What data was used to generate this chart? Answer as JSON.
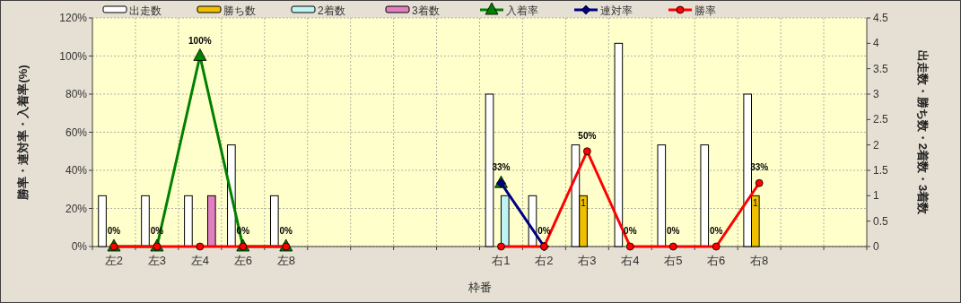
{
  "chart_data": {
    "type": "bar",
    "xlabel": "枠番",
    "ylabel": "勝率・連対率・入着率(%)",
    "y2label": "出走数・勝ち数・2着数・3着数",
    "categories": [
      "左2",
      "左3",
      "左4",
      "左6",
      "左8",
      null,
      null,
      null,
      null,
      "右1",
      "右2",
      "右3",
      "右4",
      "右5",
      "右6",
      "右8",
      null,
      null
    ],
    "series": [
      {
        "name": "出走数",
        "axis": "y2",
        "color": "#ffffff",
        "values": [
          1,
          1,
          1,
          2,
          1,
          null,
          null,
          null,
          null,
          3,
          1,
          2,
          4,
          2,
          2,
          3,
          null,
          null
        ]
      },
      {
        "name": "勝ち数",
        "axis": "y2",
        "color": "#f0c000",
        "values": [
          0,
          0,
          0,
          0,
          0,
          null,
          null,
          null,
          null,
          0,
          0,
          1,
          0,
          0,
          0,
          1,
          null,
          null
        ],
        "value_labels": [
          null,
          null,
          null,
          null,
          null,
          null,
          null,
          null,
          null,
          null,
          null,
          "1",
          null,
          null,
          null,
          "1",
          null,
          null
        ]
      },
      {
        "name": "2着数",
        "axis": "y2",
        "color": "#c0f4f4",
        "values": [
          0,
          0,
          0,
          0,
          0,
          null,
          null,
          null,
          null,
          1,
          0,
          0,
          0,
          0,
          0,
          0,
          null,
          null
        ]
      },
      {
        "name": "3着数",
        "axis": "y2",
        "color": "#e080c0",
        "values": [
          0,
          0,
          1,
          0,
          0,
          null,
          null,
          null,
          null,
          0,
          0,
          0,
          0,
          0,
          0,
          0,
          null,
          null
        ]
      },
      {
        "name": "入着率",
        "type": "line",
        "marker": "triangle",
        "color": "#008000",
        "values": [
          0,
          0,
          100,
          0,
          0,
          null,
          null,
          null,
          null,
          33.3,
          null,
          null,
          null,
          null,
          null,
          null,
          null,
          null
        ],
        "value_labels": [
          "0%",
          "0%",
          "100%",
          "0%",
          "0%",
          null,
          null,
          null,
          null,
          "33%",
          null,
          null,
          null,
          null,
          null,
          null,
          null,
          null
        ]
      },
      {
        "name": "連対率",
        "type": "line",
        "marker": "diamond",
        "color": "#000080",
        "values": [
          null,
          null,
          null,
          null,
          null,
          null,
          null,
          null,
          null,
          33.3,
          0,
          null,
          null,
          null,
          null,
          null,
          null,
          null
        ]
      },
      {
        "name": "勝率",
        "type": "line",
        "marker": "circle",
        "color": "#ff0000",
        "values": [
          0,
          0,
          0,
          0,
          0,
          null,
          null,
          null,
          null,
          0,
          0,
          50,
          0,
          0,
          0,
          33.3,
          null,
          null
        ],
        "value_labels": [
          null,
          null,
          null,
          null,
          null,
          null,
          null,
          null,
          null,
          null,
          "0%",
          "50%",
          "0%",
          "0%",
          "0%",
          "33%",
          null,
          null
        ]
      }
    ],
    "ylim": [
      0,
      120
    ],
    "yticks": [
      {
        "value": 0,
        "label": "0%"
      },
      {
        "value": 20,
        "label": "20%"
      },
      {
        "value": 40,
        "label": "40%"
      },
      {
        "value": 60,
        "label": "60%"
      },
      {
        "value": 80,
        "label": "80%"
      },
      {
        "value": 100,
        "label": "100%"
      },
      {
        "value": 120,
        "label": "120%"
      }
    ],
    "y2lim": [
      0,
      4.5
    ],
    "y2ticks": [
      0,
      0.5,
      1,
      1.5,
      2,
      2.5,
      3,
      3.5,
      4,
      4.5
    ],
    "grid": true,
    "legend": "top"
  }
}
